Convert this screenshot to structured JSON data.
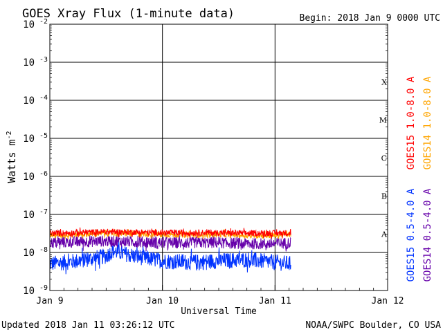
{
  "chart_data": {
    "type": "line",
    "title": "GOES Xray Flux (1-minute data)",
    "begin": "Begin:  2018 Jan 9 0000 UTC",
    "ylabel": "Watts m",
    "ylabel_sup": "-2",
    "xlabel": "Universal Time",
    "yscale": "log",
    "ylim": [
      1e-09,
      0.01
    ],
    "y_ticks": [
      {
        "base": "10",
        "exp": "-2"
      },
      {
        "base": "10",
        "exp": "-3"
      },
      {
        "base": "10",
        "exp": "-4"
      },
      {
        "base": "10",
        "exp": "-5"
      },
      {
        "base": "10",
        "exp": "-6"
      },
      {
        "base": "10",
        "exp": "-7"
      },
      {
        "base": "10",
        "exp": "-8"
      },
      {
        "base": "10",
        "exp": "-9"
      }
    ],
    "x_ticks": [
      "Jan 9",
      "Jan 10",
      "Jan 11",
      "Jan 12"
    ],
    "xlim_days": [
      0,
      3
    ],
    "flare_classes": [
      "X",
      "M",
      "C",
      "B",
      "A"
    ],
    "series": [
      {
        "name": "GOES15 1.0-8.0 A",
        "color": "#ff0000",
        "x_days": [
          0,
          0.25,
          0.5,
          0.75,
          1.0,
          1.25,
          1.5,
          1.75,
          2.0,
          2.14
        ],
        "values": [
          3.2e-08,
          3.3e-08,
          3.5e-08,
          3.4e-08,
          3.3e-08,
          3.3e-08,
          3.3e-08,
          3.2e-08,
          3.2e-08,
          3.3e-08
        ]
      },
      {
        "name": "GOES14 1.0-8.0 A",
        "color": "#ffa500",
        "x_days": [
          0,
          0.25,
          0.5,
          0.75,
          1.0,
          1.25,
          1.5,
          1.75,
          2.0,
          2.14
        ],
        "values": [
          2.9e-08,
          3e-08,
          3.2e-08,
          3.1e-08,
          3e-08,
          2.9e-08,
          3e-08,
          2.8e-08,
          2.8e-08,
          3e-08
        ]
      },
      {
        "name": "GOES14 0.5-4.0 A",
        "color": "#6600aa",
        "x_days": [
          0,
          0.25,
          0.5,
          0.75,
          1.0,
          1.25,
          1.5,
          1.75,
          2.0,
          2.14
        ],
        "values": [
          1.8e-08,
          1.9e-08,
          2e-08,
          1.9e-08,
          1.8e-08,
          1.8e-08,
          1.8e-08,
          1.7e-08,
          1.7e-08,
          1.8e-08
        ]
      },
      {
        "name": "GOES15 0.5-4.0 A",
        "color": "#0033ff",
        "x_days": [
          0,
          0.25,
          0.5,
          0.56,
          0.75,
          1.0,
          1.25,
          1.5,
          1.75,
          2.0,
          2.14
        ],
        "values": [
          5e-09,
          6e-09,
          8e-09,
          1.1e-08,
          8e-09,
          6e-09,
          5.5e-09,
          6e-09,
          6.5e-09,
          5.5e-09,
          5e-09
        ]
      }
    ]
  },
  "footer": {
    "updated": "Updated 2018 Jan 11 03:26:12 UTC",
    "credit": "NOAA/SWPC Boulder, CO USA"
  }
}
